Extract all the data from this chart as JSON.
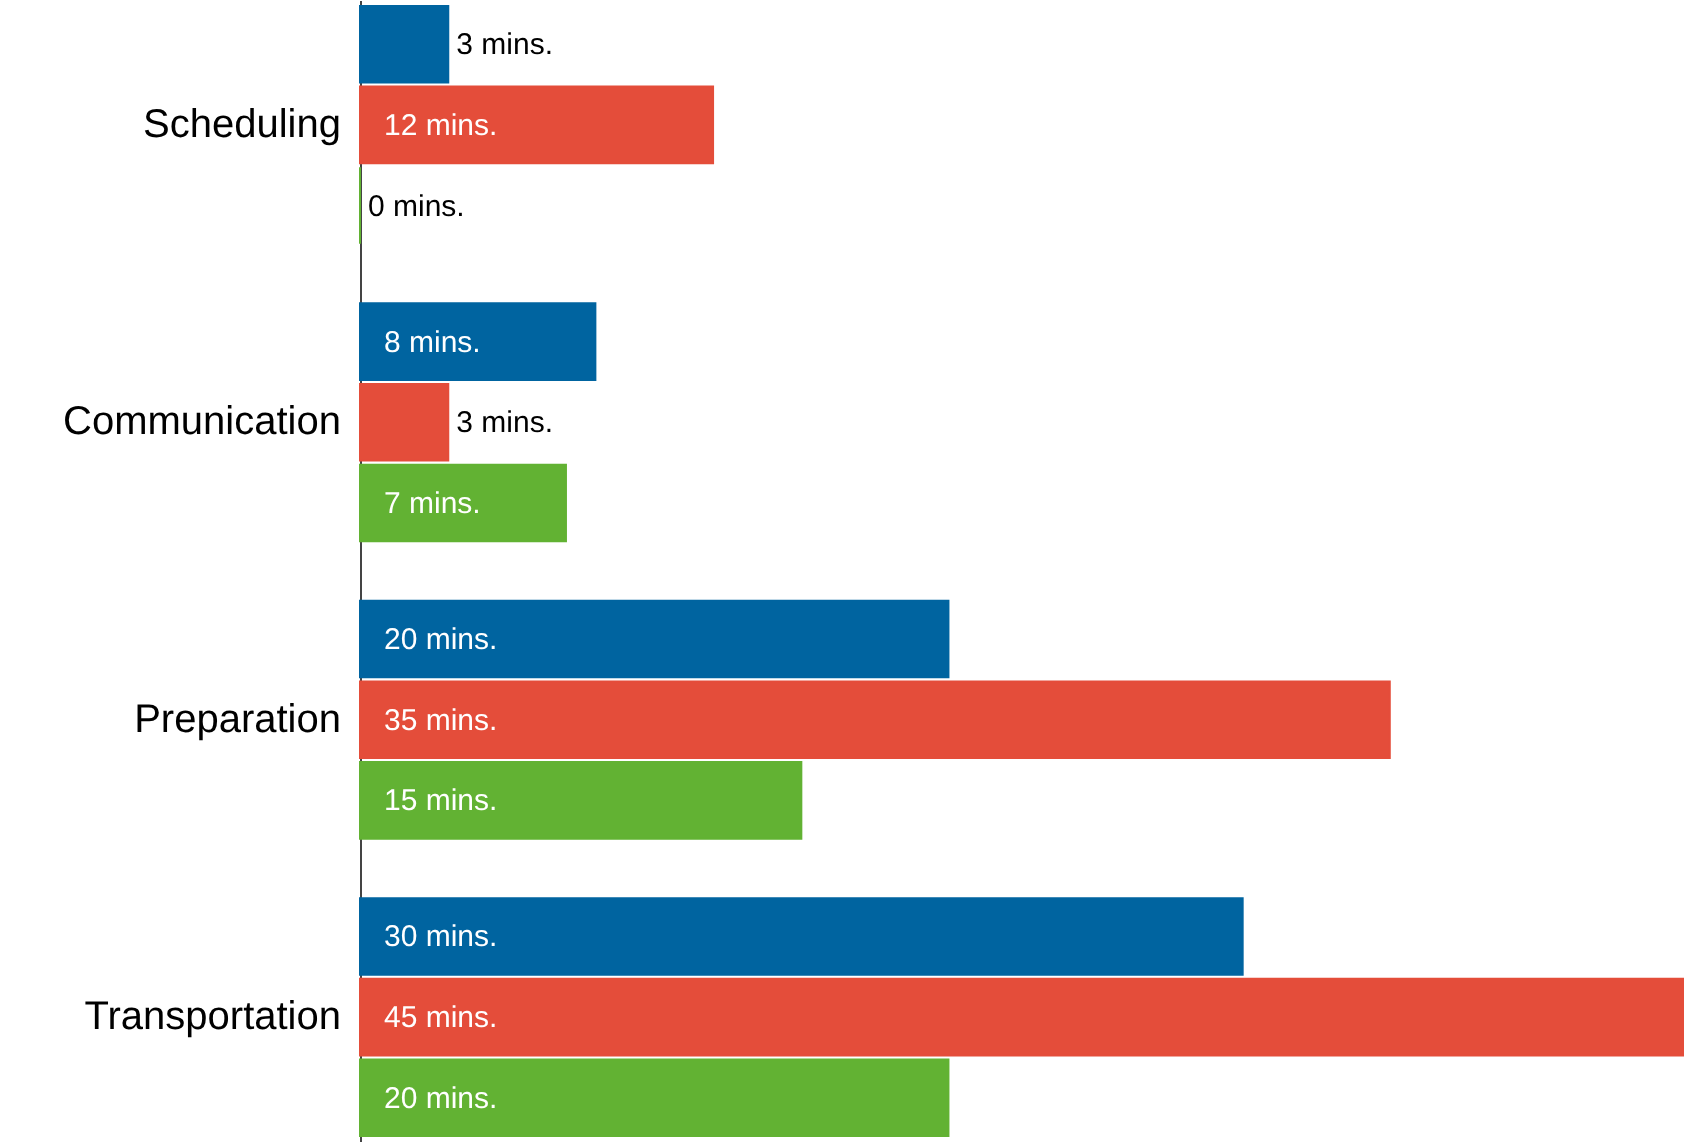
{
  "chart_data": {
    "type": "bar",
    "orientation": "horizontal",
    "categories": [
      "Scheduling",
      "Communication",
      "Preparation",
      "Transportation"
    ],
    "series": [
      {
        "color": "#0064a0",
        "values": [
          3,
          8,
          20,
          30
        ],
        "value_labels": [
          "3 mins.",
          "8 mins.",
          "20 mins.",
          "30 mins."
        ]
      },
      {
        "color": "#e44d3a",
        "values": [
          12,
          3,
          35,
          45
        ],
        "value_labels": [
          "12 mins.",
          "3 mins.",
          "35 mins.",
          "45 mins."
        ]
      },
      {
        "color": "#62b233",
        "values": [
          0,
          7,
          15,
          20
        ],
        "value_labels": [
          "0 mins.",
          "7 mins.",
          "15 mins.",
          "20 mins."
        ]
      }
    ],
    "grid": false
  }
}
